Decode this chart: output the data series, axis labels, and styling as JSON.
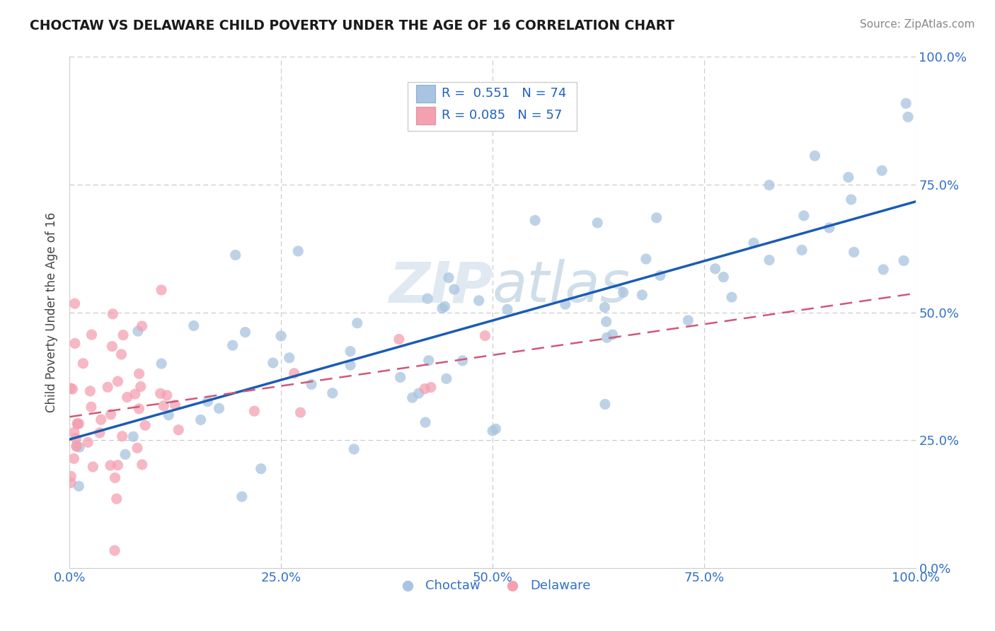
{
  "title": "CHOCTAW VS DELAWARE CHILD POVERTY UNDER THE AGE OF 16 CORRELATION CHART",
  "source_text": "Source: ZipAtlas.com",
  "ylabel": "Child Poverty Under the Age of 16",
  "xlim": [
    0.0,
    1.0
  ],
  "ylim": [
    0.0,
    1.0
  ],
  "xticks": [
    0.0,
    0.25,
    0.5,
    0.75,
    1.0
  ],
  "yticks": [
    0.0,
    0.25,
    0.5,
    0.75,
    1.0
  ],
  "xticklabels": [
    "0.0%",
    "25.0%",
    "50.0%",
    "75.0%",
    "100.0%"
  ],
  "yticklabels": [
    "0.0%",
    "25.0%",
    "50.0%",
    "75.0%",
    "100.0%"
  ],
  "choctaw_color": "#a8c4e0",
  "delaware_color": "#f4a0b0",
  "choctaw_line_color": "#1a5cb5",
  "delaware_line_color": "#d05878",
  "choctaw_R": 0.551,
  "choctaw_N": 74,
  "delaware_R": 0.085,
  "delaware_N": 57,
  "watermark": "ZIPatlas",
  "legend_label_choctaw": "Choctaw",
  "legend_label_delaware": "Delaware"
}
